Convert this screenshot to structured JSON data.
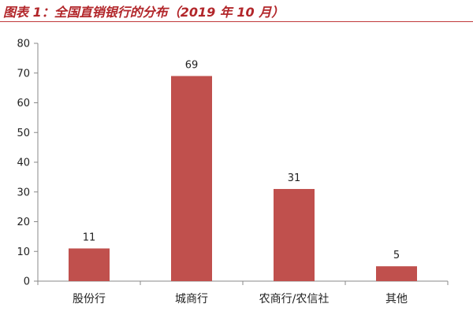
{
  "title": "图表 1：全国直销银行的分布（2019 年 10 月）",
  "colors": {
    "bar": "#c0504d",
    "title": "#b2262a",
    "axis": "#888888"
  },
  "chart_data": {
    "type": "bar",
    "title": "",
    "xlabel": "",
    "ylabel": "",
    "categories": [
      "股份行",
      "城商行",
      "农商行/农信社",
      "其他"
    ],
    "values": [
      11,
      69,
      31,
      5
    ],
    "data_labels": [
      "11",
      "69",
      "31",
      "5"
    ],
    "ylim": [
      0,
      80
    ],
    "yticks": [
      0,
      10,
      20,
      30,
      40,
      50,
      60,
      70,
      80
    ],
    "ytick_labels": [
      "0",
      "10",
      "20",
      "30",
      "40",
      "50",
      "60",
      "70",
      "80"
    ],
    "grid": false,
    "legend": "none"
  }
}
